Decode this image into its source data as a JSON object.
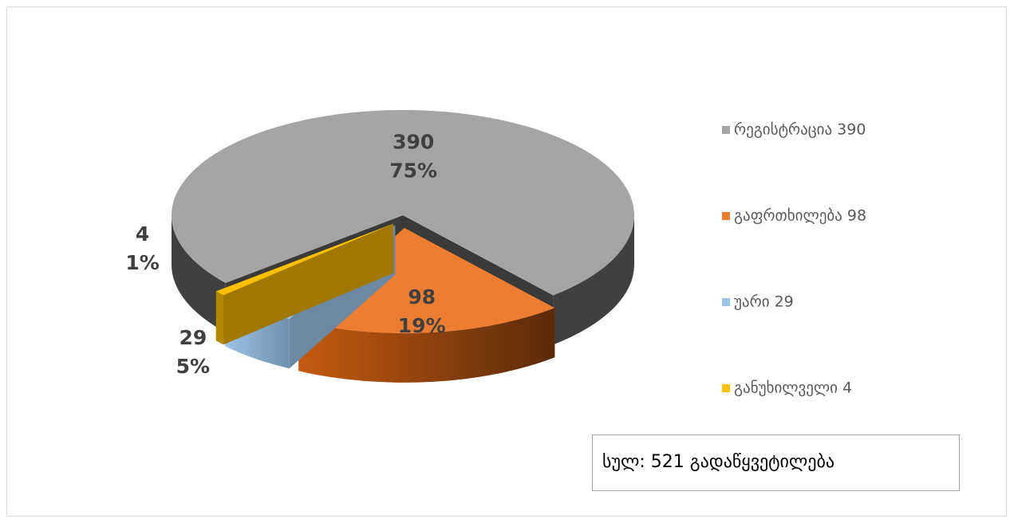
{
  "chart_data": {
    "type": "pie",
    "categories": [
      "რეგისტრაცია  390",
      "გაფრთხილება 98",
      "უარი 29",
      "განუხილველი 4"
    ],
    "values": [
      390,
      98,
      29,
      4
    ],
    "percent_labels": [
      "75%",
      "19%",
      "5%",
      "1%"
    ],
    "colors": [
      "#a5a5a5",
      "#ed7d31",
      "#9dc3e6",
      "#ffc000"
    ],
    "legend": "right",
    "annotation": "სულ: 521 გადაწყვეტილება"
  }
}
